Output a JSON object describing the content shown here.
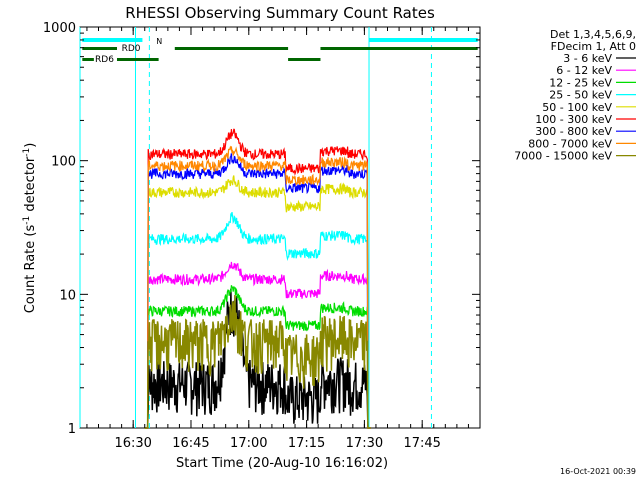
{
  "chart_data": {
    "type": "line",
    "title": "RHESSI Observing Summary Count Rates",
    "xlabel": "Start Time (20-Aug-10 16:16:02)",
    "ylabel_main": "Count Rate (s",
    "ylabel_sup1": "-1",
    "ylabel_mid": " detector",
    "ylabel_sup2": "-1",
    "ylabel_end": ")",
    "ylim": [
      1,
      1000
    ],
    "yscale": "log",
    "y_ticks": [
      {
        "value": 1,
        "label": "1"
      },
      {
        "value": 10,
        "label": "10"
      },
      {
        "value": 100,
        "label": "100"
      },
      {
        "value": 1000,
        "label": "1000"
      }
    ],
    "xlim_minutes": [
      16.27,
      18.0
    ],
    "x_ticks": [
      {
        "value": 16.5,
        "label": "16:30"
      },
      {
        "value": 16.75,
        "label": "16:45"
      },
      {
        "value": 17.0,
        "label": "17:00"
      },
      {
        "value": 17.25,
        "label": "17:15"
      },
      {
        "value": 17.5,
        "label": "17:30"
      },
      {
        "value": 17.75,
        "label": "17:45"
      }
    ],
    "legend_header": [
      "Det 1,3,4,5,6,9,",
      "FDecim 1, Att 0"
    ],
    "series": [
      {
        "name": "3 - 6 keV",
        "color": "#000000",
        "level": 2.2,
        "peak": 8.5
      },
      {
        "name": "6 - 12 keV",
        "color": "#ff00ff",
        "level": 13,
        "peak": 17
      },
      {
        "name": "12 - 25 keV",
        "color": "#00dd00",
        "level": 7.5,
        "peak": 11
      },
      {
        "name": "25 - 50 keV",
        "color": "#00ffff",
        "level": 26,
        "peak": 38
      },
      {
        "name": "50 - 100 keV",
        "color": "#dddd00",
        "level": 58,
        "peak": 72
      },
      {
        "name": "100 - 300 keV",
        "color": "#ff0000",
        "level": 112,
        "peak": 160
      },
      {
        "name": "300 - 800 keV",
        "color": "#0000ff",
        "level": 80,
        "peak": 105
      },
      {
        "name": "800 - 7000 keV",
        "color": "#ff8800",
        "level": 92,
        "peak": 118
      },
      {
        "name": "7000 - 15000 keV",
        "color": "#888800",
        "level": 4.5,
        "peak": 7.5
      }
    ],
    "annotations": {
      "saa_label": "N",
      "rd0_label": "RD0",
      "rd6_label": "RD6",
      "timestamp": "16-Oct-2021 00:39"
    },
    "colors": {
      "night_cyan": "#00ffff",
      "flags_green": "#006600"
    }
  }
}
